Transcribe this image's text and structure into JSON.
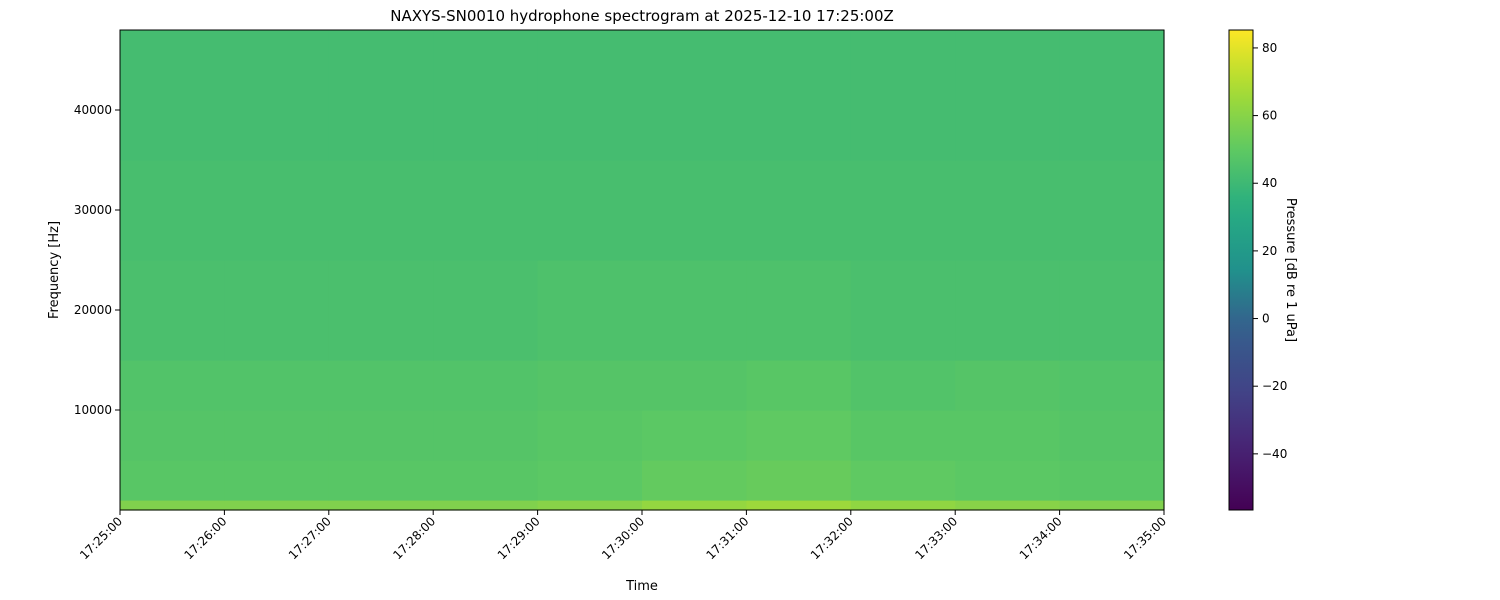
{
  "chart_data": {
    "type": "heatmap",
    "title": "NAXYS-SN0010 hydrophone spectrogram at 2025-12-10 17:25:00Z",
    "xlabel": "Time",
    "ylabel": "Frequency [Hz]",
    "colorbar_label": "Pressure [dB re 1 uPa]",
    "colormap": "viridis",
    "x_ticks": [
      "17:25:00",
      "17:26:00",
      "17:27:00",
      "17:28:00",
      "17:29:00",
      "17:30:00",
      "17:31:00",
      "17:32:00",
      "17:33:00",
      "17:34:00",
      "17:35:00"
    ],
    "y_ticks": [
      10000,
      20000,
      30000,
      40000
    ],
    "ylim": [
      0,
      48000
    ],
    "colorbar_ticks": [
      -40,
      -20,
      0,
      20,
      40,
      60,
      80
    ],
    "clim": [
      -56.6,
      85.3
    ],
    "time_bins": [
      "17:25",
      "17:26",
      "17:27",
      "17:28",
      "17:29",
      "17:30",
      "17:31",
      "17:32",
      "17:33",
      "17:34"
    ],
    "freq_bands": [
      [
        0,
        1000
      ],
      [
        1000,
        5000
      ],
      [
        5000,
        10000
      ],
      [
        10000,
        15000
      ],
      [
        15000,
        25000
      ],
      [
        25000,
        35000
      ],
      [
        35000,
        48000
      ]
    ],
    "values_db": [
      [
        58,
        58,
        58,
        58,
        60,
        63,
        65,
        62,
        60,
        58
      ],
      [
        48,
        48,
        48,
        48,
        49,
        51,
        52,
        50,
        49,
        48
      ],
      [
        47,
        47,
        47,
        47,
        48,
        49,
        50,
        48,
        48,
        47
      ],
      [
        46,
        46,
        46,
        46,
        47,
        47,
        48,
        46,
        47,
        46
      ],
      [
        44,
        44,
        44,
        44,
        45,
        45,
        45,
        44,
        44,
        44
      ],
      [
        43,
        43,
        43,
        43,
        43,
        43,
        43,
        43,
        43,
        43
      ],
      [
        42,
        42,
        42,
        42,
        42,
        42,
        42,
        42,
        42,
        42
      ]
    ]
  }
}
